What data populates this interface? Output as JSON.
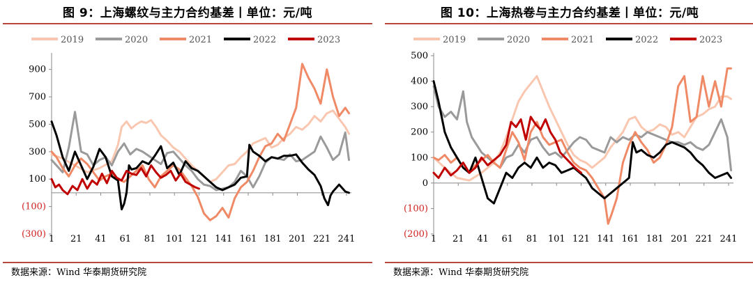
{
  "footer": {
    "source_label": "数据来源：",
    "source_value": "Wind 华泰期货研究院"
  },
  "chart_data": [
    {
      "type": "line",
      "title": "图 9：上海螺纹与主力合约基差丨单位：元/吨",
      "xlabel": "",
      "ylabel": "",
      "xlim": [
        1,
        245
      ],
      "ylim": [
        -300,
        1000
      ],
      "yticks": [
        900,
        700,
        500,
        300,
        100,
        -100,
        -300
      ],
      "ytick_labels": [
        "900",
        "700",
        "500",
        "300",
        "100",
        "(100)",
        "(300)"
      ],
      "xticks": [
        1,
        21,
        41,
        61,
        81,
        101,
        121,
        141,
        161,
        181,
        201,
        221,
        241
      ],
      "legend": "top",
      "grid": false,
      "series": [
        {
          "name": "2019",
          "color": "#f9c7b0",
          "width": 3,
          "x": [
            1,
            10,
            20,
            30,
            40,
            50,
            55,
            58,
            62,
            66,
            70,
            74,
            78,
            82,
            86,
            90,
            95,
            100,
            105,
            110,
            115,
            120,
            125,
            130,
            135,
            140,
            145,
            150,
            155,
            160,
            165,
            170,
            175,
            180,
            185,
            190,
            195,
            200,
            205,
            210,
            215,
            220,
            225,
            230,
            235,
            240,
            243
          ],
          "y": [
            280,
            250,
            200,
            150,
            180,
            230,
            350,
            480,
            520,
            470,
            500,
            520,
            510,
            530,
            480,
            420,
            380,
            330,
            300,
            250,
            200,
            160,
            120,
            80,
            100,
            150,
            200,
            210,
            260,
            300,
            360,
            380,
            400,
            330,
            350,
            400,
            430,
            480,
            460,
            500,
            560,
            520,
            580,
            600,
            540,
            480,
            430
          ]
        },
        {
          "name": "2020",
          "color": "#9a9a9a",
          "width": 3,
          "x": [
            1,
            5,
            10,
            15,
            20,
            25,
            30,
            35,
            40,
            45,
            50,
            55,
            60,
            65,
            70,
            75,
            80,
            85,
            90,
            95,
            100,
            105,
            110,
            115,
            120,
            125,
            130,
            135,
            140,
            145,
            150,
            155,
            160,
            165,
            170,
            175,
            180,
            185,
            190,
            195,
            200,
            205,
            210,
            215,
            220,
            225,
            230,
            235,
            240,
            243
          ],
          "y": [
            240,
            200,
            150,
            330,
            590,
            300,
            280,
            200,
            240,
            260,
            200,
            300,
            360,
            280,
            320,
            300,
            270,
            240,
            210,
            290,
            300,
            250,
            200,
            160,
            100,
            60,
            50,
            20,
            30,
            40,
            80,
            160,
            120,
            40,
            120,
            220,
            260,
            250,
            240,
            280,
            230,
            240,
            270,
            300,
            410,
            330,
            240,
            280,
            440,
            240
          ]
        },
        {
          "name": "2021",
          "color": "#f08a66",
          "width": 3,
          "x": [
            1,
            5,
            10,
            15,
            20,
            25,
            30,
            35,
            40,
            45,
            50,
            55,
            60,
            65,
            70,
            75,
            80,
            85,
            90,
            95,
            100,
            105,
            110,
            115,
            120,
            125,
            130,
            135,
            140,
            145,
            150,
            155,
            160,
            165,
            170,
            175,
            180,
            185,
            190,
            195,
            200,
            205,
            210,
            215,
            220,
            225,
            230,
            235,
            240,
            243
          ],
          "y": [
            300,
            260,
            180,
            120,
            200,
            250,
            210,
            150,
            90,
            120,
            140,
            100,
            80,
            120,
            160,
            200,
            100,
            40,
            120,
            160,
            200,
            170,
            110,
            50,
            -30,
            -150,
            -200,
            -170,
            -110,
            -180,
            -40,
            40,
            80,
            160,
            260,
            340,
            360,
            430,
            380,
            500,
            620,
            940,
            840,
            760,
            650,
            900,
            700,
            560,
            620,
            580
          ]
        },
        {
          "name": "2022",
          "color": "#000000",
          "width": 3,
          "x": [
            1,
            5,
            10,
            15,
            20,
            25,
            30,
            35,
            40,
            45,
            50,
            55,
            58,
            60,
            62,
            64,
            66,
            70,
            75,
            80,
            85,
            90,
            95,
            100,
            105,
            110,
            115,
            120,
            125,
            130,
            135,
            140,
            145,
            150,
            155,
            160,
            162,
            165,
            170,
            175,
            180,
            185,
            190,
            195,
            200,
            205,
            210,
            215,
            220,
            223,
            226,
            228,
            230,
            235,
            240,
            243
          ],
          "y": [
            520,
            420,
            260,
            160,
            300,
            200,
            100,
            190,
            320,
            260,
            120,
            90,
            -120,
            -80,
            0,
            200,
            170,
            180,
            230,
            210,
            270,
            340,
            180,
            220,
            130,
            230,
            180,
            160,
            120,
            80,
            40,
            20,
            40,
            60,
            110,
            120,
            350,
            300,
            270,
            230,
            260,
            250,
            270,
            270,
            280,
            220,
            170,
            130,
            50,
            -40,
            -90,
            -20,
            10,
            60,
            10,
            0
          ]
        },
        {
          "name": "2023",
          "color": "#c00000",
          "width": 3,
          "x": [
            1,
            4,
            7,
            10,
            14,
            18,
            22,
            26,
            30,
            34,
            38,
            42,
            46,
            50,
            54,
            58,
            62,
            66,
            70,
            74,
            78,
            82,
            86,
            90,
            94,
            98,
            102,
            106,
            110,
            114,
            118,
            121
          ],
          "y": [
            100,
            40,
            60,
            20,
            -10,
            50,
            20,
            100,
            30,
            90,
            60,
            140,
            70,
            160,
            110,
            90,
            160,
            140,
            130,
            180,
            120,
            200,
            150,
            110,
            130,
            160,
            90,
            140,
            80,
            60,
            40,
            30
          ]
        }
      ]
    },
    {
      "type": "line",
      "title": "图 10：上海热卷与主力合约基差丨单位：元/吨",
      "xlabel": "",
      "ylabel": "",
      "xlim": [
        1,
        245
      ],
      "ylim": [
        -200,
        500
      ],
      "yticks": [
        500,
        400,
        300,
        200,
        100,
        0,
        -100,
        -200
      ],
      "ytick_labels": [
        "500",
        "400",
        "300",
        "200",
        "100",
        "0",
        "(100)",
        "(200)"
      ],
      "xticks": [
        1,
        21,
        41,
        61,
        81,
        101,
        121,
        141,
        161,
        181,
        201,
        221,
        241
      ],
      "legend": "top",
      "grid": false,
      "series": [
        {
          "name": "2019",
          "color": "#f9c7b0",
          "width": 3,
          "x": [
            1,
            10,
            20,
            30,
            40,
            50,
            55,
            60,
            65,
            70,
            75,
            80,
            85,
            90,
            95,
            100,
            105,
            110,
            115,
            120,
            125,
            130,
            135,
            140,
            145,
            150,
            155,
            160,
            165,
            170,
            175,
            180,
            185,
            190,
            195,
            200,
            205,
            210,
            215,
            220,
            225,
            230,
            235,
            240,
            243
          ],
          "y": [
            100,
            60,
            20,
            10,
            40,
            80,
            120,
            180,
            250,
            320,
            360,
            390,
            420,
            360,
            300,
            250,
            200,
            150,
            110,
            90,
            80,
            60,
            80,
            100,
            140,
            170,
            200,
            250,
            260,
            220,
            200,
            210,
            230,
            220,
            190,
            200,
            180,
            220,
            260,
            270,
            290,
            300,
            340,
            340,
            330
          ]
        },
        {
          "name": "2020",
          "color": "#9a9a9a",
          "width": 3,
          "x": [
            1,
            5,
            10,
            15,
            20,
            25,
            28,
            32,
            36,
            40,
            45,
            50,
            55,
            60,
            65,
            70,
            75,
            80,
            85,
            90,
            95,
            100,
            105,
            110,
            115,
            120,
            125,
            130,
            135,
            140,
            145,
            150,
            155,
            160,
            165,
            170,
            175,
            180,
            185,
            190,
            195,
            200,
            205,
            210,
            215,
            220,
            225,
            230,
            235,
            240,
            243
          ],
          "y": [
            380,
            300,
            260,
            280,
            250,
            360,
            240,
            180,
            150,
            120,
            100,
            80,
            60,
            100,
            110,
            150,
            120,
            170,
            180,
            140,
            110,
            120,
            100,
            130,
            160,
            180,
            170,
            140,
            130,
            120,
            180,
            160,
            180,
            170,
            190,
            180,
            200,
            190,
            180,
            170,
            160,
            160,
            150,
            160,
            140,
            130,
            150,
            200,
            250,
            180,
            50
          ]
        },
        {
          "name": "2021",
          "color": "#f08a66",
          "width": 3,
          "x": [
            1,
            5,
            10,
            15,
            20,
            25,
            30,
            35,
            40,
            45,
            50,
            55,
            60,
            65,
            70,
            75,
            80,
            85,
            90,
            95,
            100,
            105,
            110,
            115,
            120,
            125,
            130,
            135,
            140,
            143,
            146,
            150,
            155,
            160,
            165,
            170,
            175,
            180,
            185,
            190,
            195,
            200,
            205,
            210,
            215,
            220,
            225,
            230,
            235,
            240,
            243
          ],
          "y": [
            100,
            90,
            110,
            80,
            100,
            60,
            40,
            70,
            90,
            110,
            80,
            60,
            130,
            200,
            160,
            90,
            200,
            240,
            180,
            150,
            160,
            170,
            120,
            80,
            60,
            50,
            20,
            -20,
            -60,
            -160,
            -120,
            -60,
            80,
            150,
            200,
            160,
            130,
            80,
            100,
            150,
            220,
            380,
            420,
            240,
            260,
            420,
            300,
            400,
            300,
            450,
            450
          ]
        },
        {
          "name": "2022",
          "color": "#000000",
          "width": 3,
          "x": [
            1,
            5,
            10,
            15,
            20,
            25,
            30,
            35,
            40,
            45,
            50,
            55,
            60,
            65,
            70,
            75,
            80,
            85,
            90,
            95,
            100,
            105,
            110,
            115,
            120,
            125,
            130,
            135,
            140,
            145,
            150,
            155,
            160,
            163,
            166,
            170,
            175,
            180,
            185,
            190,
            195,
            200,
            205,
            210,
            215,
            220,
            225,
            230,
            235,
            240,
            243
          ],
          "y": [
            400,
            320,
            200,
            140,
            100,
            60,
            40,
            100,
            20,
            -60,
            -80,
            -20,
            40,
            20,
            60,
            80,
            60,
            100,
            60,
            80,
            70,
            40,
            50,
            60,
            40,
            20,
            -20,
            -40,
            -60,
            -40,
            -20,
            0,
            20,
            160,
            120,
            130,
            110,
            100,
            120,
            150,
            160,
            150,
            140,
            120,
            90,
            70,
            40,
            20,
            30,
            40,
            20
          ]
        },
        {
          "name": "2023",
          "color": "#c00000",
          "width": 3,
          "x": [
            1,
            5,
            10,
            15,
            20,
            25,
            30,
            35,
            40,
            45,
            50,
            55,
            60,
            64,
            68,
            72,
            76,
            80,
            84,
            88,
            92,
            96,
            100,
            104,
            108,
            112,
            116,
            121
          ],
          "y": [
            40,
            20,
            60,
            30,
            50,
            80,
            40,
            60,
            100,
            70,
            90,
            110,
            150,
            240,
            220,
            250,
            170,
            260,
            230,
            210,
            250,
            200,
            170,
            120,
            100,
            80,
            60,
            40
          ]
        }
      ]
    }
  ]
}
